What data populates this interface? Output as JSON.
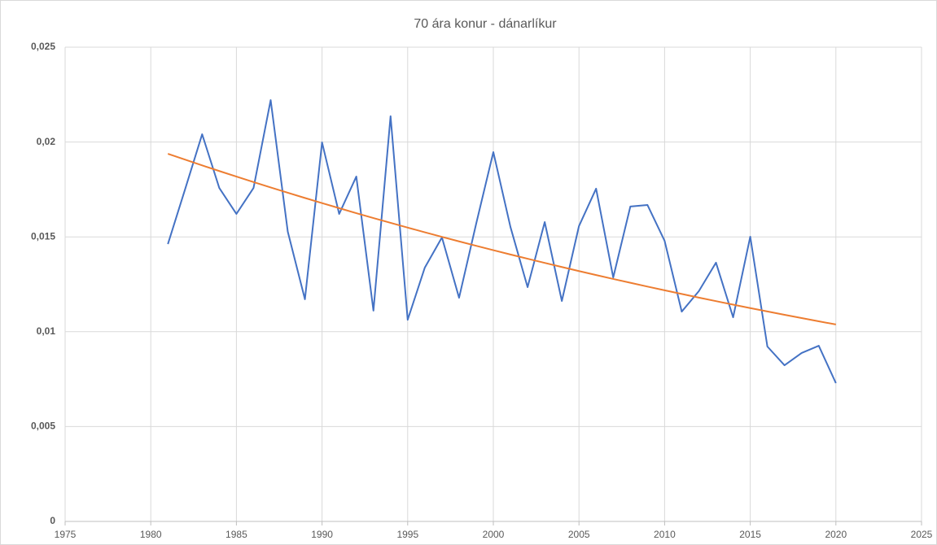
{
  "chart_data": {
    "type": "line",
    "title": "70 ára konur - dánarlíkur",
    "x": [
      1981,
      1982,
      1983,
      1984,
      1985,
      1986,
      1987,
      1988,
      1989,
      1990,
      1991,
      1992,
      1993,
      1994,
      1995,
      1996,
      1997,
      1998,
      1999,
      2000,
      2001,
      2002,
      2003,
      2004,
      2005,
      2006,
      2007,
      2008,
      2009,
      2010,
      2011,
      2012,
      2013,
      2014,
      2015,
      2016,
      2017,
      2018,
      2019,
      2020
    ],
    "series": [
      {
        "color": "#4472c4",
        "values": [
          0.01462,
          0.0175,
          0.02041,
          0.01758,
          0.01621,
          0.01758,
          0.02221,
          0.01527,
          0.01171,
          0.01998,
          0.01621,
          0.01818,
          0.01111,
          0.02136,
          0.01063,
          0.01338,
          0.01497,
          0.01179,
          0.0157,
          0.01947,
          0.01552,
          0.01235,
          0.01578,
          0.01162,
          0.01557,
          0.01754,
          0.01286,
          0.0166,
          0.01668,
          0.01479,
          0.01106,
          0.01214,
          0.01364,
          0.01076,
          0.01501,
          0.00922,
          0.00823,
          0.00888,
          0.00926,
          0.00729
        ]
      },
      {
        "color": "#ed7d31",
        "values": [
          0.01938,
          0.019072,
          0.018769,
          0.018471,
          0.018178,
          0.017889,
          0.017605,
          0.017326,
          0.017051,
          0.01678,
          0.016514,
          0.016251,
          0.015993,
          0.015739,
          0.015489,
          0.015243,
          0.015001,
          0.014763,
          0.014529,
          0.014298,
          0.014071,
          0.013847,
          0.013628,
          0.013411,
          0.013198,
          0.012989,
          0.012782,
          0.012579,
          0.01238,
          0.012183,
          0.01199,
          0.011799,
          0.011612,
          0.011428,
          0.011246,
          0.011068,
          0.010892,
          0.010719,
          0.010549,
          0.010381
        ]
      }
    ],
    "xlim": [
      1975,
      2025
    ],
    "xticks": [
      1975,
      1980,
      1985,
      1990,
      1995,
      2000,
      2005,
      2010,
      2015,
      2020,
      2025
    ],
    "ylim": [
      0,
      0.025
    ],
    "yticks": [
      0,
      {
        "value": 0.005,
        "label": "0,005"
      },
      {
        "value": 0.01,
        "label": "0,01"
      },
      {
        "value": 0.015,
        "label": "0,015"
      },
      {
        "value": 0.02,
        "label": "0,02"
      },
      {
        "value": 0.025,
        "label": "0,025"
      }
    ],
    "grid": true
  }
}
